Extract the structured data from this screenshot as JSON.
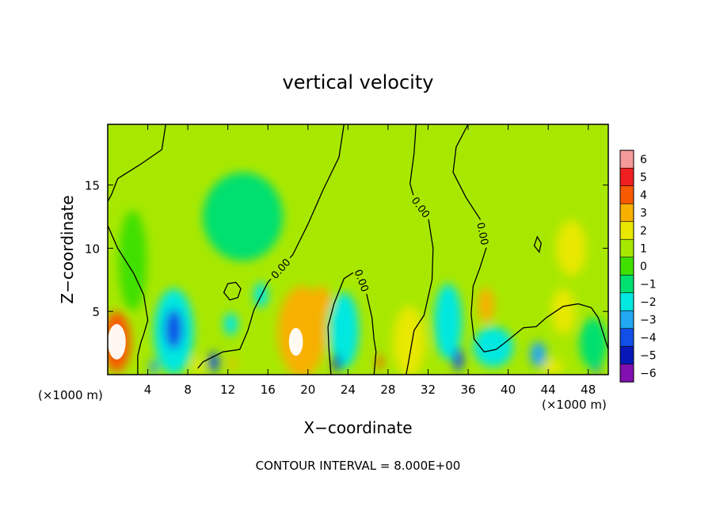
{
  "chart_data": {
    "type": "heatmap",
    "title": "vertical velocity",
    "xlabel": "X−coordinate",
    "ylabel": "Z−coordinate",
    "x_unit_label_left": "(×1000 m)",
    "x_unit_label_right": "(×1000 m)",
    "footer": "CONTOUR INTERVAL = 8.000E+00",
    "xlim": [
      0,
      50
    ],
    "ylim": [
      0,
      19.8
    ],
    "x_ticks": [
      4,
      8,
      12,
      16,
      20,
      24,
      28,
      32,
      36,
      40,
      44,
      48
    ],
    "y_ticks": [
      5,
      10,
      15
    ],
    "colorbar": {
      "levels": [
        6,
        5,
        4,
        3,
        2,
        1,
        0,
        -1,
        -2,
        -3,
        -4,
        -5,
        -6
      ],
      "labels": [
        "6",
        "5",
        "4",
        "3",
        "2",
        "1",
        "0",
        "−1",
        "−2",
        "−3",
        "−4",
        "−5",
        "−6"
      ],
      "colors": [
        "#f59a9a",
        "#f02020",
        "#f85a00",
        "#f8b000",
        "#e8e800",
        "#a8e800",
        "#40e000",
        "#00e070",
        "#00e8e0",
        "#20a8f0",
        "#1050e8",
        "#0818b8",
        "#8010b0"
      ]
    },
    "contour_label": "0.00",
    "background_value": 0.5,
    "cells": [
      {
        "x": 0.9,
        "z": 2.6,
        "v": 8.0,
        "rx": 0.9,
        "rz": 1.4
      },
      {
        "x": 0.9,
        "z": 2.6,
        "v": 6.0,
        "rx": 1.2,
        "rz": 1.9
      },
      {
        "x": 0.9,
        "z": 2.6,
        "v": 4.0,
        "rx": 1.4,
        "rz": 2.4
      },
      {
        "x": 6.6,
        "z": 3.4,
        "v": -2.5,
        "rx": 2.0,
        "rz": 3.4
      },
      {
        "x": 6.6,
        "z": 3.6,
        "v": -4.0,
        "rx": 0.9,
        "rz": 1.6
      },
      {
        "x": 4.6,
        "z": 0.6,
        "v": -3.0,
        "rx": 0.4,
        "rz": 0.6
      },
      {
        "x": 10.6,
        "z": 1.0,
        "v": -4.5,
        "rx": 0.5,
        "rz": 0.8
      },
      {
        "x": 9.0,
        "z": 0.7,
        "v": 2.0,
        "rx": 0.5,
        "rz": 0.7
      },
      {
        "x": 12.5,
        "z": 0.9,
        "v": 3.0,
        "rx": 0.3,
        "rz": 0.5
      },
      {
        "x": 12.3,
        "z": 4.0,
        "v": -1.8,
        "rx": 0.7,
        "rz": 0.9
      },
      {
        "x": 15.3,
        "z": 6.3,
        "v": -2.2,
        "rx": 0.7,
        "rz": 1.0
      },
      {
        "x": 18.8,
        "z": 2.6,
        "v": 8.0,
        "rx": 0.7,
        "rz": 1.1
      },
      {
        "x": 18.8,
        "z": 2.8,
        "v": 5.0,
        "rx": 1.3,
        "rz": 1.9
      },
      {
        "x": 19.4,
        "z": 3.4,
        "v": 2.5,
        "rx": 2.4,
        "rz": 3.6
      },
      {
        "x": 21.3,
        "z": 5.8,
        "v": 3.0,
        "rx": 1.0,
        "rz": 1.2
      },
      {
        "x": 23.8,
        "z": 3.7,
        "v": -4.0,
        "rx": 0.9,
        "rz": 1.8
      },
      {
        "x": 23.6,
        "z": 3.5,
        "v": -2.0,
        "rx": 1.5,
        "rz": 3.0
      },
      {
        "x": 22.9,
        "z": 0.9,
        "v": -5.0,
        "rx": 0.4,
        "rz": 0.7
      },
      {
        "x": 27.2,
        "z": 1.0,
        "v": 4.0,
        "rx": 0.3,
        "rz": 0.6
      },
      {
        "x": 30.1,
        "z": 2.4,
        "v": 5.0,
        "rx": 0.8,
        "rz": 1.3
      },
      {
        "x": 30.1,
        "z": 2.6,
        "v": 2.0,
        "rx": 1.6,
        "rz": 2.8
      },
      {
        "x": 34.0,
        "z": 4.2,
        "v": -1.6,
        "rx": 1.4,
        "rz": 3.0
      },
      {
        "x": 35.0,
        "z": 1.2,
        "v": -4.5,
        "rx": 0.5,
        "rz": 0.9
      },
      {
        "x": 37.8,
        "z": 5.5,
        "v": 3.0,
        "rx": 0.8,
        "rz": 1.4
      },
      {
        "x": 38.5,
        "z": 2.2,
        "v": -2.2,
        "rx": 2.0,
        "rz": 1.6
      },
      {
        "x": 43.0,
        "z": 1.6,
        "v": -2.8,
        "rx": 0.8,
        "rz": 1.0
      },
      {
        "x": 46.3,
        "z": 10.0,
        "v": 1.5,
        "rx": 1.5,
        "rz": 2.2
      },
      {
        "x": 45.5,
        "z": 5.0,
        "v": 2.0,
        "rx": 1.2,
        "rz": 1.8
      },
      {
        "x": 48.8,
        "z": 1.3,
        "v": -4.0,
        "rx": 0.5,
        "rz": 1.2
      },
      {
        "x": 48.5,
        "z": 2.5,
        "v": -1.5,
        "rx": 1.4,
        "rz": 2.0
      },
      {
        "x": 44.5,
        "z": 0.6,
        "v": 2.0,
        "rx": 1.0,
        "rz": 0.6
      },
      {
        "x": 2.5,
        "z": 9.0,
        "v": -0.5,
        "rx": 1.4,
        "rz": 4.0
      },
      {
        "x": 13.5,
        "z": 12.5,
        "v": -0.6,
        "rx": 4.0,
        "rz": 3.5
      },
      {
        "x": 32.0,
        "z": 15.0,
        "v": 1.2,
        "rx": 3.0,
        "rz": 4.0
      },
      {
        "x": 25.5,
        "z": 16.0,
        "v": 1.1,
        "rx": 2.5,
        "rz": 3.0
      }
    ],
    "contours": [
      {
        "label_at": null,
        "points": [
          [
            5.8,
            19.8
          ],
          [
            5.4,
            17.8
          ],
          [
            3.2,
            16.6
          ],
          [
            1.0,
            15.5
          ],
          [
            0.4,
            14.3
          ],
          [
            0.0,
            13.7
          ]
        ]
      },
      {
        "label_at": null,
        "points": [
          [
            0.0,
            11.8
          ],
          [
            1.0,
            10.0
          ],
          [
            2.6,
            8.0
          ],
          [
            3.6,
            6.3
          ],
          [
            4.0,
            4.3
          ],
          [
            3.6,
            3.2
          ],
          [
            3.3,
            2.5
          ],
          [
            3.0,
            1.5
          ],
          [
            3.0,
            0.0
          ]
        ]
      },
      {
        "label_at": 4,
        "points": [
          [
            23.6,
            19.8
          ],
          [
            23.1,
            17.2
          ],
          [
            21.5,
            14.6
          ],
          [
            20.0,
            11.9
          ],
          [
            18.5,
            9.5
          ],
          [
            16.0,
            7.3
          ],
          [
            14.6,
            5.1
          ],
          [
            14.0,
            3.5
          ],
          [
            13.2,
            2.0
          ],
          [
            11.5,
            1.8
          ],
          [
            9.5,
            1.0
          ],
          [
            9.0,
            0.5
          ]
        ]
      },
      {
        "label_at": 3,
        "points": [
          [
            30.8,
            19.8
          ],
          [
            30.6,
            17.5
          ],
          [
            30.2,
            15.1
          ],
          [
            30.6,
            14.0
          ],
          [
            32.0,
            12.5
          ],
          [
            32.5,
            10.0
          ],
          [
            32.4,
            7.5
          ],
          [
            31.6,
            4.7
          ],
          [
            30.6,
            3.5
          ],
          [
            30.0,
            0.8
          ],
          [
            29.8,
            0.0
          ]
        ]
      },
      {
        "label_at": 4,
        "points": [
          [
            36.0,
            19.8
          ],
          [
            34.8,
            18.0
          ],
          [
            34.5,
            16.0
          ],
          [
            35.8,
            14.0
          ],
          [
            37.2,
            12.3
          ],
          [
            37.8,
            10.0
          ],
          [
            37.2,
            8.5
          ],
          [
            36.5,
            7.0
          ],
          [
            36.3,
            4.8
          ],
          [
            36.6,
            2.8
          ],
          [
            37.6,
            1.8
          ],
          [
            38.8,
            2.0
          ],
          [
            39.8,
            2.6
          ],
          [
            41.5,
            3.7
          ],
          [
            42.8,
            3.8
          ],
          [
            43.8,
            4.5
          ],
          [
            45.5,
            5.4
          ],
          [
            47.0,
            5.6
          ],
          [
            48.3,
            5.3
          ],
          [
            49.0,
            4.5
          ],
          [
            49.6,
            3.0
          ],
          [
            50.0,
            2.0
          ]
        ]
      },
      {
        "label_at": 5,
        "points": [
          [
            22.3,
            0.0
          ],
          [
            22.1,
            2.0
          ],
          [
            22.0,
            3.8
          ],
          [
            22.6,
            5.6
          ],
          [
            23.6,
            7.6
          ],
          [
            25.0,
            8.3
          ],
          [
            25.8,
            6.6
          ],
          [
            26.4,
            4.5
          ],
          [
            26.6,
            2.8
          ],
          [
            26.8,
            1.8
          ],
          [
            26.6,
            0.0
          ]
        ]
      },
      {
        "label_at": null,
        "closed": true,
        "points": [
          [
            11.6,
            6.5
          ],
          [
            12.0,
            7.2
          ],
          [
            12.8,
            7.3
          ],
          [
            13.3,
            6.8
          ],
          [
            13.0,
            6.1
          ],
          [
            12.2,
            5.9
          ]
        ]
      },
      {
        "label_at": null,
        "closed": true,
        "points": [
          [
            42.6,
            10.2
          ],
          [
            42.9,
            10.9
          ],
          [
            43.3,
            10.4
          ],
          [
            43.1,
            9.7
          ]
        ]
      }
    ]
  }
}
